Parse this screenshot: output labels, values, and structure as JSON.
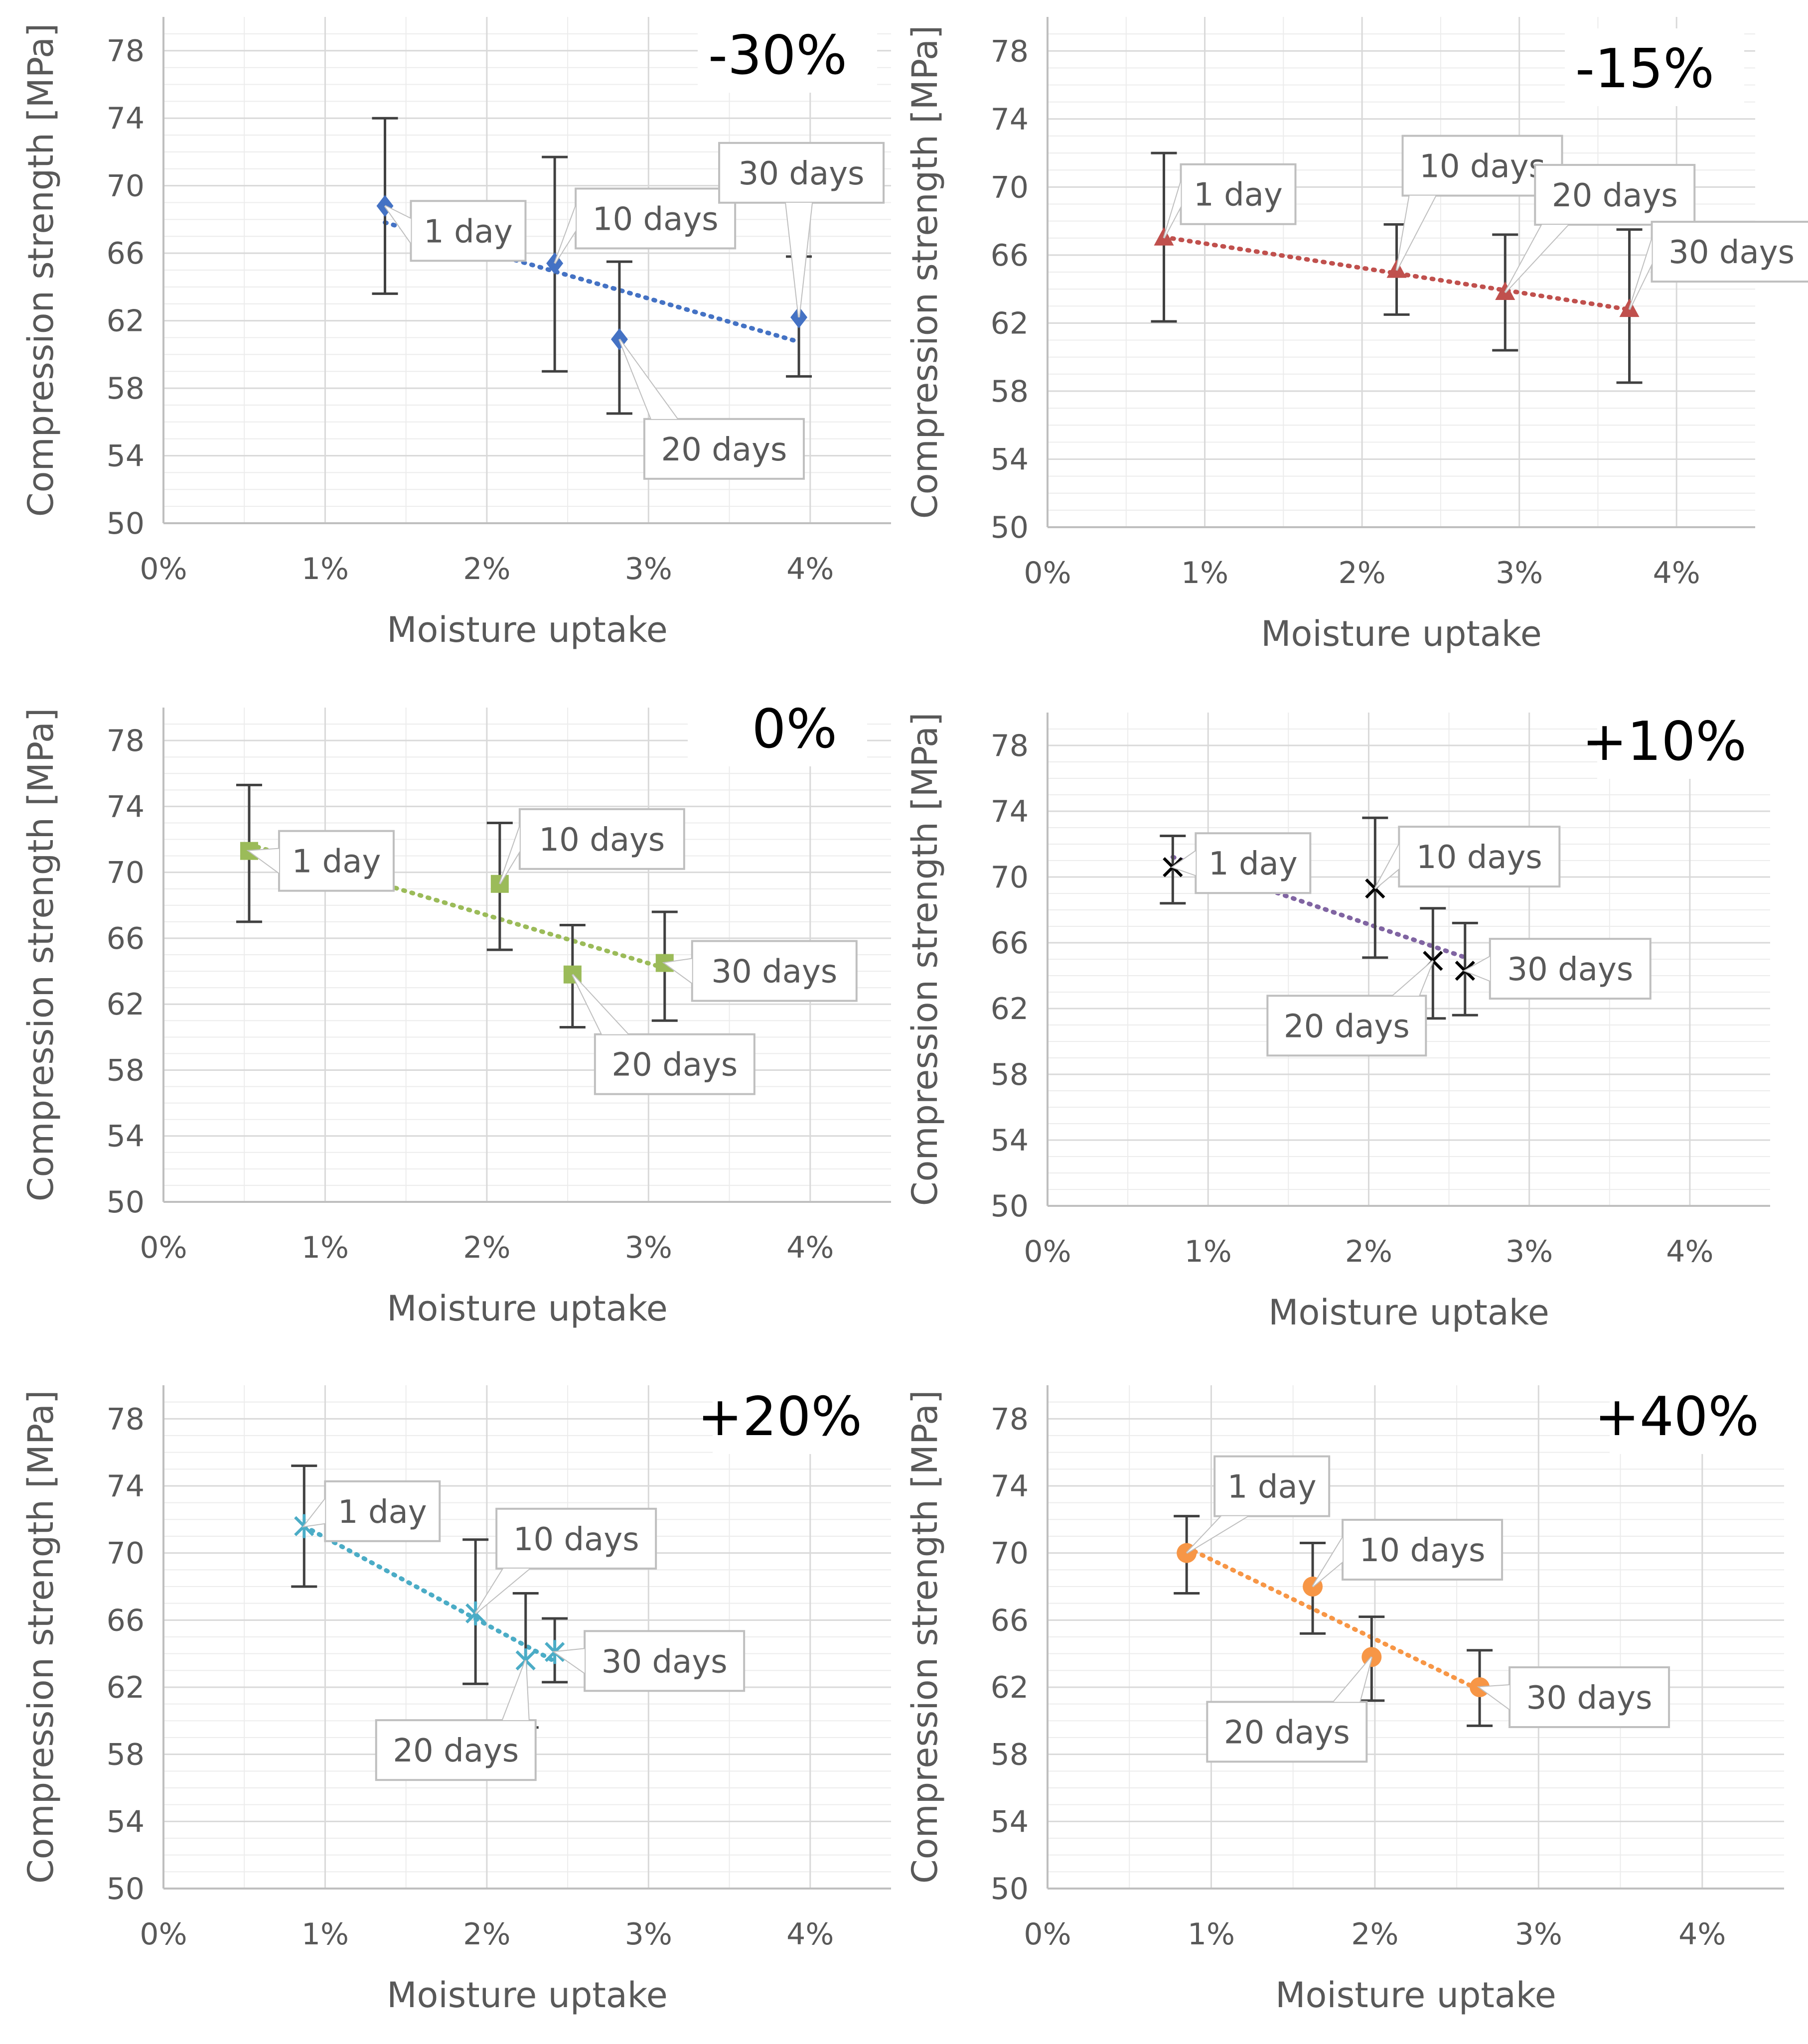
{
  "figure": {
    "x_axis_title": "Moisture uptake",
    "y_axis_title": "Compression strength [MPa]",
    "x_tick_labels": [
      "0%",
      "1%",
      "2%",
      "3%",
      "4%"
    ],
    "y_tick_labels": [
      "50",
      "54",
      "58",
      "62",
      "66",
      "70",
      "74",
      "78"
    ]
  },
  "chart_data": [
    {
      "type": "scatter",
      "title": "-30%",
      "xlabel": "Moisture uptake",
      "ylabel": "Compression strength [MPa]",
      "xlim": [
        0,
        4.5
      ],
      "ylim": [
        50,
        80
      ],
      "marker": "diamond",
      "color": "#4472C4",
      "trendline": "linear",
      "points": [
        {
          "label": "1 day",
          "x": 1.37,
          "y": 68.8,
          "err_low": 63.6,
          "err_high": 74.0
        },
        {
          "label": "10 days",
          "x": 2.42,
          "y": 65.4,
          "err_low": 59.0,
          "err_high": 71.7
        },
        {
          "label": "20 days",
          "x": 2.82,
          "y": 60.9,
          "err_low": 56.5,
          "err_high": 65.5
        },
        {
          "label": "30 days",
          "x": 3.93,
          "y": 62.2,
          "err_low": 58.7,
          "err_high": 65.8
        }
      ]
    },
    {
      "type": "scatter",
      "title": "-15%",
      "xlabel": "Moisture uptake",
      "ylabel": "Compression strength [MPa]",
      "xlim": [
        0,
        4.5
      ],
      "ylim": [
        50,
        80
      ],
      "marker": "triangle",
      "color": "#C0504D",
      "trendline": "linear",
      "points": [
        {
          "label": "1 day",
          "x": 0.74,
          "y": 67.0,
          "err_low": 62.1,
          "err_high": 72.0
        },
        {
          "label": "10 days",
          "x": 2.22,
          "y": 65.1,
          "err_low": 62.5,
          "err_high": 67.8
        },
        {
          "label": "20 days",
          "x": 2.91,
          "y": 63.8,
          "err_low": 60.4,
          "err_high": 67.2
        },
        {
          "label": "30 days",
          "x": 3.7,
          "y": 62.8,
          "err_low": 58.5,
          "err_high": 67.5
        }
      ]
    },
    {
      "type": "scatter",
      "title": "0%",
      "xlabel": "Moisture uptake",
      "ylabel": "Compression strength [MPa]",
      "xlim": [
        0,
        4.5
      ],
      "ylim": [
        50,
        80
      ],
      "marker": "square",
      "color": "#9BBB59",
      "trendline": "linear",
      "points": [
        {
          "label": "1 day",
          "x": 0.53,
          "y": 71.3,
          "err_low": 67.0,
          "err_high": 75.3
        },
        {
          "label": "10 days",
          "x": 2.08,
          "y": 69.3,
          "err_low": 65.3,
          "err_high": 73.0
        },
        {
          "label": "20 days",
          "x": 2.53,
          "y": 63.8,
          "err_low": 60.6,
          "err_high": 66.8
        },
        {
          "label": "30 days",
          "x": 3.1,
          "y": 64.5,
          "err_low": 61.0,
          "err_high": 67.6
        }
      ]
    },
    {
      "type": "scatter",
      "title": "+10%",
      "xlabel": "Moisture uptake",
      "ylabel": "Compression strength [MPa]",
      "xlim": [
        0,
        4.5
      ],
      "ylim": [
        50,
        80
      ],
      "marker": "x",
      "color": "#000000",
      "trendline_color": "#8064A2",
      "trendline": "linear",
      "points": [
        {
          "label": "1 day",
          "x": 0.78,
          "y": 70.6,
          "err_low": 68.4,
          "err_high": 72.5
        },
        {
          "label": "10 days",
          "x": 2.04,
          "y": 69.3,
          "err_low": 65.1,
          "err_high": 73.6
        },
        {
          "label": "20 days",
          "x": 2.4,
          "y": 64.9,
          "err_low": 61.4,
          "err_high": 68.1
        },
        {
          "label": "30 days",
          "x": 2.6,
          "y": 64.3,
          "err_low": 61.6,
          "err_high": 67.2
        }
      ]
    },
    {
      "type": "scatter",
      "title": "+20%",
      "xlabel": "Moisture uptake",
      "ylabel": "Compression strength [MPa]",
      "xlim": [
        0,
        4.5
      ],
      "ylim": [
        50,
        80
      ],
      "marker": "star",
      "color": "#4BACC6",
      "trendline": "linear",
      "points": [
        {
          "label": "1 day",
          "x": 0.87,
          "y": 71.6,
          "err_low": 68.0,
          "err_high": 75.2
        },
        {
          "label": "10 days",
          "x": 1.93,
          "y": 66.4,
          "err_low": 62.2,
          "err_high": 70.8
        },
        {
          "label": "20 days",
          "x": 2.24,
          "y": 63.6,
          "err_low": 59.6,
          "err_high": 67.6
        },
        {
          "label": "30 days",
          "x": 2.42,
          "y": 64.1,
          "err_low": 62.3,
          "err_high": 66.1
        }
      ]
    },
    {
      "type": "scatter",
      "title": "+40%",
      "xlabel": "Moisture uptake",
      "ylabel": "Compression strength [MPa]",
      "xlim": [
        0,
        4.5
      ],
      "ylim": [
        50,
        80
      ],
      "marker": "circle",
      "color": "#F79646",
      "trendline": "linear",
      "points": [
        {
          "label": "1 day",
          "x": 0.85,
          "y": 70.0,
          "err_low": 67.6,
          "err_high": 72.2
        },
        {
          "label": "10 days",
          "x": 1.62,
          "y": 68.0,
          "err_low": 65.2,
          "err_high": 70.6
        },
        {
          "label": "20 days",
          "x": 1.98,
          "y": 63.8,
          "err_low": 61.2,
          "err_high": 66.2
        },
        {
          "label": "30 days",
          "x": 2.64,
          "y": 62.0,
          "err_low": 59.7,
          "err_high": 64.2
        }
      ]
    }
  ]
}
